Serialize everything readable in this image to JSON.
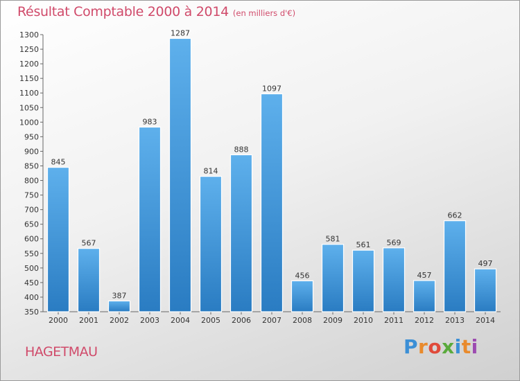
{
  "chart_data": {
    "type": "bar",
    "title": "Résultat Comptable 2000 à 2014",
    "unit_label": "(en milliers d'€)",
    "categories": [
      "2000",
      "2001",
      "2002",
      "2003",
      "2004",
      "2005",
      "2006",
      "2007",
      "2008",
      "2009",
      "2010",
      "2011",
      "2012",
      "2013",
      "2014"
    ],
    "values": [
      845,
      567,
      387,
      983,
      1287,
      814,
      888,
      1097,
      456,
      581,
      561,
      569,
      457,
      662,
      497
    ],
    "ylim": [
      350,
      1300
    ],
    "ytick_step": 50,
    "xlabel": "",
    "ylabel": "",
    "grid": false,
    "bar_color_light": "#5eb0ec",
    "bar_color_dark": "#2a7cc2"
  },
  "location": "HAGETMAU",
  "logo": {
    "letters": [
      "P",
      "r",
      "o",
      "x",
      "i",
      "t",
      "i"
    ]
  }
}
